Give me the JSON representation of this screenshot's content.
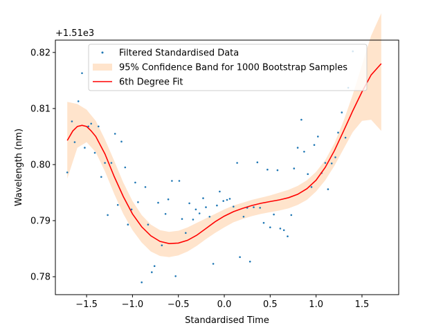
{
  "chart_data": {
    "type": "scatter",
    "xlabel": "Standardised Time",
    "ylabel": "Wavelength (nm)",
    "offset_text": "+1.51e3",
    "xlim": [
      -1.84,
      1.9
    ],
    "ylim": [
      0.7768,
      0.8222
    ],
    "x_ticks": [
      -1.5,
      -1.0,
      -0.5,
      0.0,
      0.5,
      1.0,
      1.5
    ],
    "x_tick_labels": [
      "−1.5",
      "−1.0",
      "−0.5",
      "0.0",
      "0.5",
      "1.0",
      "1.5"
    ],
    "y_ticks": [
      0.78,
      0.79,
      0.8,
      0.81,
      0.82
    ],
    "y_tick_labels": [
      "0.78",
      "0.79",
      "0.80",
      "0.81",
      "0.82"
    ],
    "grid": false,
    "legend_position": "top-center",
    "series": [
      {
        "name": "Filtered Standardised Data",
        "kind": "scatter",
        "color": "#1f77b4",
        "points": [
          [
            -1.71,
            0.7986
          ],
          [
            -1.66,
            0.8077
          ],
          [
            -1.63,
            0.804
          ],
          [
            -1.59,
            0.8113
          ],
          [
            -1.55,
            0.8163
          ],
          [
            -1.52,
            0.803
          ],
          [
            -1.48,
            0.8068
          ],
          [
            -1.45,
            0.8073
          ],
          [
            -1.41,
            0.8021
          ],
          [
            -1.37,
            0.8068
          ],
          [
            -1.34,
            0.7978
          ],
          [
            -1.3,
            0.8003
          ],
          [
            -1.27,
            0.791
          ],
          [
            -1.23,
            0.8003
          ],
          [
            -1.19,
            0.8055
          ],
          [
            -1.16,
            0.7928
          ],
          [
            -1.12,
            0.8041
          ],
          [
            -1.08,
            0.7995
          ],
          [
            -1.05,
            0.7893
          ],
          [
            -1.01,
            0.792
          ],
          [
            -0.97,
            0.7968
          ],
          [
            -0.94,
            0.7933
          ],
          [
            -0.9,
            0.779
          ],
          [
            -0.86,
            0.796
          ],
          [
            -0.83,
            0.7893
          ],
          [
            -0.79,
            0.7808
          ],
          [
            -0.76,
            0.7819
          ],
          [
            -0.72,
            0.7932
          ],
          [
            -0.68,
            0.7856
          ],
          [
            -0.64,
            0.7912
          ],
          [
            -0.61,
            0.7938
          ],
          [
            -0.57,
            0.7971
          ],
          [
            -0.53,
            0.7801
          ],
          [
            -0.49,
            0.7971
          ],
          [
            -0.46,
            0.7903
          ],
          [
            -0.42,
            0.7878
          ],
          [
            -0.38,
            0.7931
          ],
          [
            -0.34,
            0.7902
          ],
          [
            -0.31,
            0.792
          ],
          [
            -0.27,
            0.7913
          ],
          [
            -0.23,
            0.794
          ],
          [
            -0.2,
            0.7924
          ],
          [
            -0.16,
            0.7907
          ],
          [
            -0.12,
            0.7823
          ],
          [
            -0.08,
            0.7927
          ],
          [
            -0.05,
            0.7952
          ],
          [
            -0.01,
            0.7935
          ],
          [
            0.03,
            0.7937
          ],
          [
            0.06,
            0.7939
          ],
          [
            0.1,
            0.7925
          ],
          [
            0.14,
            0.8003
          ],
          [
            0.17,
            0.7835
          ],
          [
            0.21,
            0.7907
          ],
          [
            0.25,
            0.7923
          ],
          [
            0.28,
            0.7827
          ],
          [
            0.32,
            0.7924
          ],
          [
            0.36,
            0.8004
          ],
          [
            0.39,
            0.7923
          ],
          [
            0.43,
            0.7896
          ],
          [
            0.47,
            0.7991
          ],
          [
            0.5,
            0.7888
          ],
          [
            0.54,
            0.7911
          ],
          [
            0.58,
            0.799
          ],
          [
            0.61,
            0.7886
          ],
          [
            0.65,
            0.7883
          ],
          [
            0.69,
            0.7872
          ],
          [
            0.73,
            0.791
          ],
          [
            0.76,
            0.7993
          ],
          [
            0.8,
            0.803
          ],
          [
            0.84,
            0.808
          ],
          [
            0.87,
            0.8023
          ],
          [
            0.91,
            0.7983
          ],
          [
            0.95,
            0.796
          ],
          [
            0.98,
            0.8035
          ],
          [
            1.02,
            0.805
          ],
          [
            1.06,
            0.7985
          ],
          [
            1.1,
            0.8003
          ],
          [
            1.13,
            0.7956
          ],
          [
            1.17,
            0.8002
          ],
          [
            1.21,
            0.8013
          ],
          [
            1.24,
            0.8057
          ],
          [
            1.28,
            0.8093
          ],
          [
            1.32,
            0.8048
          ],
          [
            1.35,
            0.8137
          ],
          [
            1.4,
            0.8202
          ]
        ]
      },
      {
        "name": "95% Confidence Band for 1000 Bootstrap Samples",
        "kind": "band",
        "color": "#ffe4cc",
        "x": [
          -1.71,
          -1.6,
          -1.5,
          -1.4,
          -1.3,
          -1.2,
          -1.1,
          -1.0,
          -0.9,
          -0.8,
          -0.7,
          -0.6,
          -0.5,
          -0.4,
          -0.3,
          -0.2,
          -0.1,
          0.0,
          0.1,
          0.2,
          0.3,
          0.4,
          0.5,
          0.6,
          0.7,
          0.8,
          0.9,
          1.0,
          1.1,
          1.2,
          1.3,
          1.4,
          1.5,
          1.6,
          1.71
        ],
        "lower": [
          0.7975,
          0.803,
          0.804,
          0.8022,
          0.7988,
          0.7948,
          0.7912,
          0.7883,
          0.7861,
          0.7845,
          0.7837,
          0.7835,
          0.7838,
          0.7845,
          0.7855,
          0.7867,
          0.7878,
          0.7888,
          0.7897,
          0.7903,
          0.7908,
          0.7912,
          0.7915,
          0.7918,
          0.7922,
          0.7928,
          0.7937,
          0.7952,
          0.7972,
          0.7998,
          0.8028,
          0.8058,
          0.8078,
          0.808,
          0.806
        ],
        "upper": [
          0.8112,
          0.8108,
          0.8098,
          0.8078,
          0.8045,
          0.8007,
          0.7968,
          0.7935,
          0.791,
          0.7893,
          0.7883,
          0.788,
          0.7882,
          0.7888,
          0.7896,
          0.7904,
          0.7912,
          0.792,
          0.7927,
          0.7932,
          0.7937,
          0.7941,
          0.7945,
          0.795,
          0.7955,
          0.7962,
          0.7972,
          0.7987,
          0.8008,
          0.8038,
          0.8078,
          0.8125,
          0.8178,
          0.823,
          0.827
        ]
      },
      {
        "name": "6th Degree Fit",
        "kind": "line",
        "color": "#ff0000",
        "x": [
          -1.71,
          -1.65,
          -1.6,
          -1.55,
          -1.5,
          -1.45,
          -1.4,
          -1.3,
          -1.2,
          -1.1,
          -1.0,
          -0.9,
          -0.8,
          -0.7,
          -0.6,
          -0.5,
          -0.4,
          -0.3,
          -0.2,
          -0.1,
          0.0,
          0.1,
          0.2,
          0.3,
          0.4,
          0.5,
          0.6,
          0.7,
          0.8,
          0.9,
          1.0,
          1.1,
          1.2,
          1.3,
          1.4,
          1.5,
          1.6,
          1.71
        ],
        "y": [
          0.8043,
          0.806,
          0.8068,
          0.807,
          0.8068,
          0.806,
          0.805,
          0.8019,
          0.7979,
          0.7943,
          0.7912,
          0.7889,
          0.7873,
          0.7863,
          0.7859,
          0.786,
          0.7865,
          0.7874,
          0.7886,
          0.7898,
          0.7908,
          0.7916,
          0.7922,
          0.7927,
          0.7931,
          0.7934,
          0.7937,
          0.7941,
          0.7947,
          0.7957,
          0.7972,
          0.7995,
          0.8025,
          0.806,
          0.8096,
          0.813,
          0.816,
          0.818
        ]
      }
    ]
  }
}
